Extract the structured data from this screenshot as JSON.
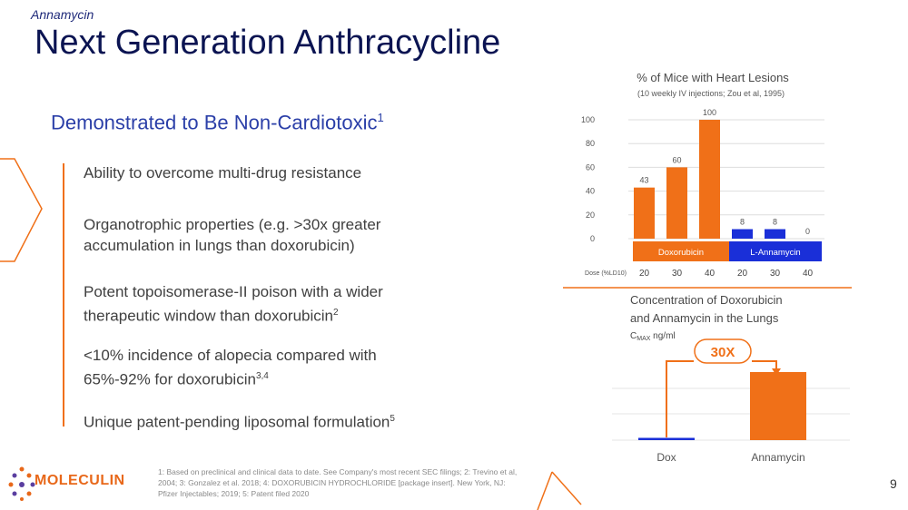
{
  "header": {
    "supertitle": "Annamycin",
    "title": "Next Generation Anthracycline"
  },
  "main": {
    "subtitle": "Demonstrated to Be Non-Cardiotoxic",
    "subtitle_sup": "1",
    "bullets": [
      {
        "lines": [
          "Ability to overcome multi-drug resistance"
        ],
        "sup": ""
      },
      {
        "lines": [
          "Organotrophic properties (e.g. >30x greater",
          "accumulation in lungs than doxorubicin)"
        ],
        "sup": ""
      },
      {
        "lines": [
          "Potent topoisomerase-II poison with a wider",
          "therapeutic window than doxorubicin"
        ],
        "sup": "2"
      },
      {
        "lines": [
          "<10% incidence of alopecia compared with",
          "65%-92% for doxorubicin"
        ],
        "sup": "3,4"
      },
      {
        "lines": [
          "Unique patent-pending liposomal formulation"
        ],
        "sup": "5"
      }
    ]
  },
  "footer": {
    "logo": "MOLECULIN",
    "footnote": "1: Based on preclinical and clinical data to date. See Company's most recent SEC filings; 2: Trevino et al, 2004; 3: Gonzalez et al. 2018; 4: DOXORUBICIN HYDROCHLORIDE [package insert]. New York, NJ: Pfizer Injectables; 2019; 5: Patent filed 2020",
    "page_number": "9"
  },
  "colors": {
    "title": "#0b1452",
    "subtitle": "#2b3fa8",
    "accent_orange": "#f07018",
    "accent_blue": "#1a2fd8"
  },
  "chart_data": [
    {
      "type": "bar",
      "title": "% of Mice with Heart Lesions",
      "subtitle": "(10 weekly IV injections; Zou et al, 1995)",
      "xlabel": "Dose (%LD10)",
      "categories": [
        "20",
        "30",
        "40",
        "20",
        "30",
        "40"
      ],
      "groups": [
        "Doxorubicin",
        "L-Annamycin"
      ],
      "values": [
        43,
        60,
        100,
        8,
        8,
        0
      ],
      "ylim": [
        0,
        100
      ],
      "yticks": [
        0,
        20,
        40,
        60,
        80,
        100
      ],
      "grid": true
    },
    {
      "type": "bar",
      "title": "Concentration of Doxorubicin and Annamycin in the Lungs",
      "ylabel": "CMAX ng/ml",
      "categories": [
        "Dox",
        "Annamycin"
      ],
      "values": [
        1,
        30
      ],
      "annotation": "30X",
      "grid": true
    }
  ]
}
